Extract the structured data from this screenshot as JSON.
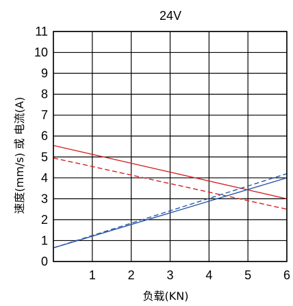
{
  "chart_data": {
    "type": "line",
    "title": "24V",
    "xlabel": "负载(KN)",
    "ylabel": "速度(mm/s) 或 电流(A)",
    "xlim": [
      0,
      6
    ],
    "ylim": [
      0,
      11
    ],
    "xticks": [
      "1",
      "2",
      "3",
      "4",
      "5",
      "6"
    ],
    "yticks": [
      "0",
      "1",
      "2",
      "3",
      "4",
      "5",
      "6",
      "7",
      "8",
      "9",
      "10",
      "11"
    ],
    "grid": true,
    "series": [
      {
        "color": "#d42020",
        "style": "solid",
        "x": [
          0,
          6
        ],
        "y": [
          5.55,
          3.0
        ]
      },
      {
        "color": "#d42020",
        "style": "dashed",
        "x": [
          0,
          6
        ],
        "y": [
          4.95,
          2.5
        ]
      },
      {
        "color": "#2a55a8",
        "style": "solid",
        "x": [
          0,
          6
        ],
        "y": [
          0.65,
          4.0
        ]
      },
      {
        "color": "#2a55a8",
        "style": "dashed",
        "x": [
          0,
          6
        ],
        "y": [
          0.65,
          4.2
        ]
      }
    ]
  }
}
